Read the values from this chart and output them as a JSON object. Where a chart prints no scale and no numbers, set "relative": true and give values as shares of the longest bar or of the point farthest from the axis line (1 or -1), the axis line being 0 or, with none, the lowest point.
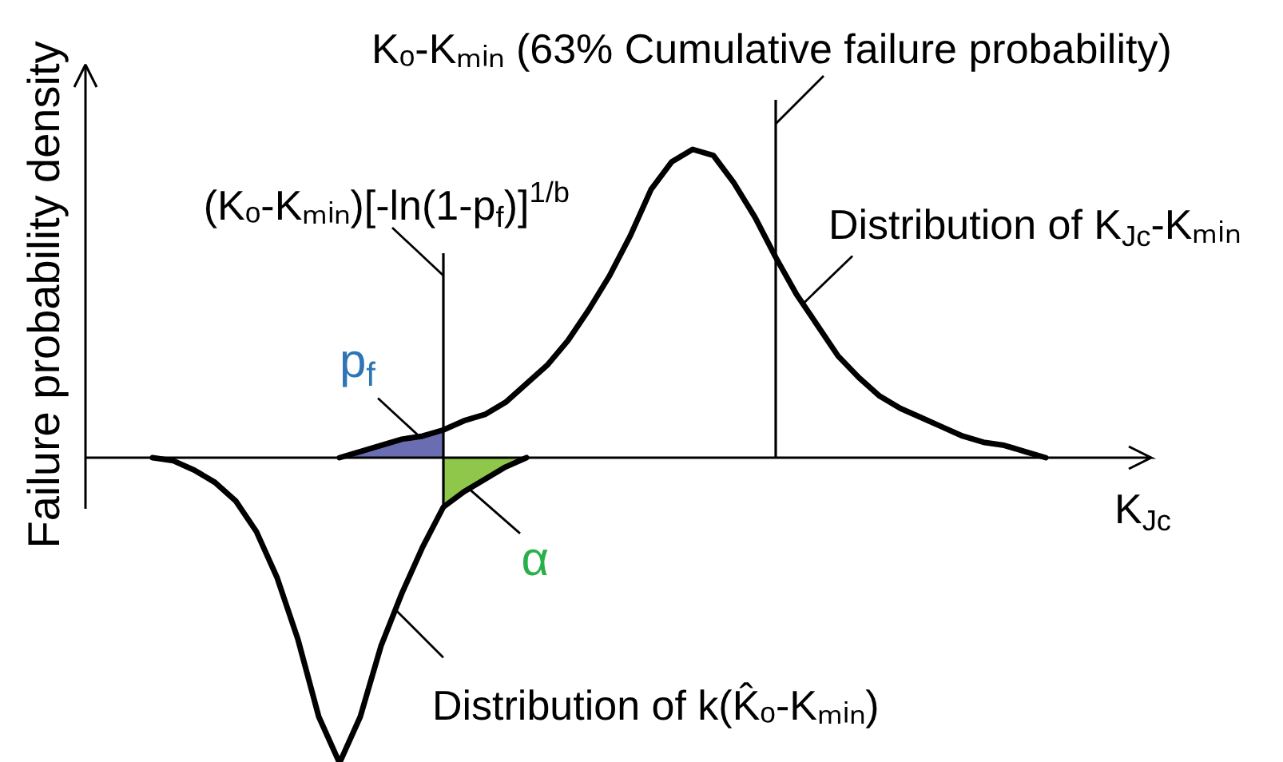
{
  "chart_data": {
    "type": "line",
    "relative": true,
    "xlabel": "K$_{Jc}$",
    "ylabel": "Failure probability density",
    "categories": [
      null,
      null,
      null,
      null,
      null,
      null,
      null,
      null,
      null,
      null,
      null,
      null,
      null,
      null,
      null,
      null,
      null,
      null,
      null,
      null,
      null,
      null,
      null,
      null,
      null,
      null,
      null,
      null,
      null,
      null,
      null,
      null,
      null,
      null,
      null,
      null,
      null,
      null,
      null,
      null,
      null,
      null,
      null,
      null,
      null,
      null,
      null
    ],
    "series": [
      {
        "type": "area",
        "name": "p$_{f}$",
        "color": "#6b6db3",
        "values": [
          null,
          null,
          null,
          null,
          null,
          null,
          null,
          null,
          null,
          null,
          null,
          null,
          0,
          0.02,
          0.04,
          0.06,
          0.07,
          0.09,
          null,
          null,
          null,
          null,
          null,
          null,
          null,
          null,
          null,
          null,
          null,
          null,
          null,
          null,
          null,
          null,
          null,
          null,
          null,
          null,
          null,
          null,
          null,
          null,
          null,
          null,
          null,
          null,
          null
        ]
      },
      {
        "type": "area",
        "color": "#8fc74a",
        "values": [
          null,
          null,
          null,
          null,
          null,
          null,
          null,
          null,
          null,
          null,
          null,
          null,
          null,
          null,
          null,
          null,
          null,
          -0.16,
          -0.11,
          -0.07,
          -0.03,
          0,
          null,
          null,
          null,
          null,
          null,
          null,
          null,
          null,
          null,
          null,
          null,
          null,
          null,
          null,
          null,
          null,
          null,
          null,
          null,
          null,
          null,
          null,
          null,
          null,
          null
        ]
      },
      {
        "name": "Distribution of K$_{Jc}$-Kₘᵢₙ",
        "color": "#000000",
        "values": [
          null,
          null,
          null,
          null,
          null,
          null,
          null,
          null,
          null,
          null,
          null,
          null,
          0,
          0.02,
          0.04,
          0.06,
          0.07,
          0.09,
          0.12,
          0.14,
          0.18,
          0.24,
          0.3,
          0.38,
          0.48,
          0.59,
          0.72,
          0.87,
          0.96,
          1,
          0.98,
          0.89,
          0.78,
          0.65,
          0.53,
          0.43,
          0.33,
          0.26,
          0.2,
          0.16,
          0.13,
          0.1,
          0.07,
          0.05,
          0.04,
          0.02,
          0
        ]
      },
      {
        "color": "#000000",
        "values": [
          null,
          null,
          null,
          0,
          -0.01,
          -0.04,
          -0.08,
          -0.14,
          -0.24,
          -0.39,
          -0.59,
          -0.84,
          -0.99,
          -0.84,
          -0.61,
          -0.44,
          -0.29,
          -0.16,
          -0.11,
          -0.07,
          -0.03,
          0,
          null,
          null,
          null,
          null,
          null,
          null,
          null,
          null,
          null,
          null,
          null,
          null,
          null,
          null,
          null,
          null,
          null,
          null,
          null,
          null,
          null,
          null,
          null,
          null,
          null
        ]
      }
    ],
    "annotations": [
      "(Kₒ-Kₘᵢₙ)[-ln(1-p$_{f}$)]$^{1/b}$",
      "Kₒ-Kₘᵢₙ (63% Cumulative failure probability)",
      "α",
      "Distribution of k(K̂ₒ-Kₘᵢₙ)"
    ]
  }
}
